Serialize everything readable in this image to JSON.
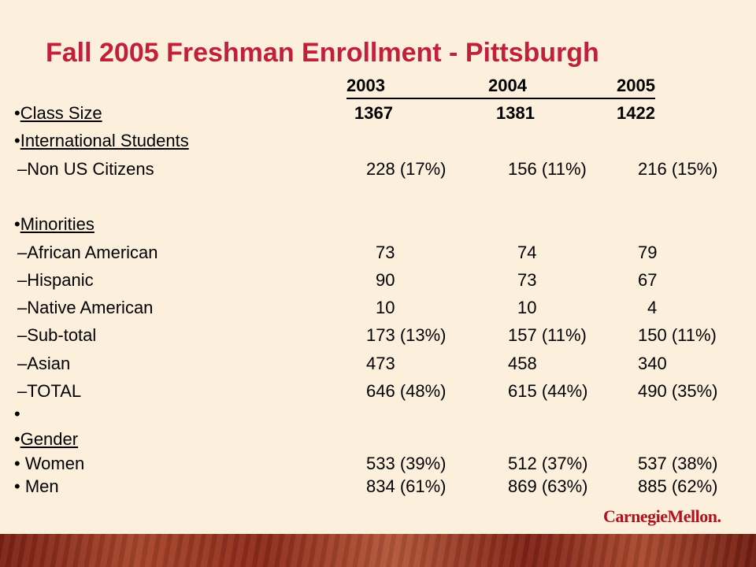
{
  "title": "Fall 2005 Freshman Enrollment - Pittsburgh",
  "years": [
    "2003",
    "2004",
    "2005"
  ],
  "rows": [
    {
      "label": "•Class Size",
      "v": [
        "1367",
        "1381",
        "1422"
      ]
    },
    {
      "label": "•International Students",
      "v": [
        "",
        "",
        ""
      ]
    },
    {
      "label": "–Non US Citizens",
      "v": [
        "228 (17%)",
        "156 (11%)",
        "216 (15%)"
      ]
    },
    {
      "label": "•Minorities",
      "v": [
        "",
        "",
        ""
      ]
    },
    {
      "label": "–African American",
      "v": [
        "73",
        "74",
        "79"
      ]
    },
    {
      "label": "–Hispanic",
      "v": [
        "90",
        "73",
        "67"
      ]
    },
    {
      "label": "–Native American",
      "v": [
        "10",
        "10",
        "4"
      ]
    },
    {
      "label": "–Sub-total",
      "v": [
        "173 (13%)",
        "157 (11%)",
        "150 (11%)"
      ]
    },
    {
      "label": "–Asian",
      "v": [
        "473",
        "458",
        "340"
      ]
    },
    {
      "label": "–TOTAL",
      "v": [
        "646 (48%)",
        "615 (44%)",
        "490 (35%)"
      ]
    },
    {
      "label": "•",
      "v": [
        "",
        "",
        ""
      ]
    },
    {
      "label": "•Gender",
      "v": [
        "",
        "",
        ""
      ]
    },
    {
      "label": "• Women",
      "v": [
        "533 (39%)",
        "512 (37%)",
        "537 (38%)"
      ]
    },
    {
      "label": "• Men",
      "v": [
        "834 (61%)",
        "869 (63%)",
        "885 (62%)"
      ]
    }
  ],
  "logo_text": "CarnegieMellon."
}
